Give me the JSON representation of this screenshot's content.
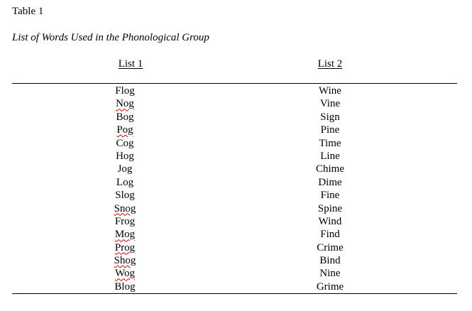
{
  "table_label": "Table 1",
  "caption": "List of Words Used in the Phonological Group",
  "columns": [
    "List 1",
    "List 2"
  ],
  "list1": [
    "Flog",
    "Nog",
    "Bog",
    "Pog",
    "Cog",
    "Hog",
    "Jog",
    "Log",
    "Slog",
    "Snog",
    "Frog",
    "Mog",
    "Prog",
    "Shog",
    "Wog",
    "Blog"
  ],
  "list2": [
    "Wine",
    "Vine",
    "Sign",
    "Pine",
    "Time",
    "Line",
    "Chime",
    "Dime",
    "Fine",
    "Spine",
    "Wind",
    "Find",
    "Crime",
    "Bind",
    "Nine",
    "Grime"
  ],
  "spellcheck_flagged": [
    "Nog",
    "Pog",
    "Snog",
    "Mog",
    "Prog",
    "Shog",
    "Wog"
  ],
  "colors": {
    "text": "#000000",
    "spellcheck_underline": "#d40000",
    "background": "#ffffff"
  }
}
